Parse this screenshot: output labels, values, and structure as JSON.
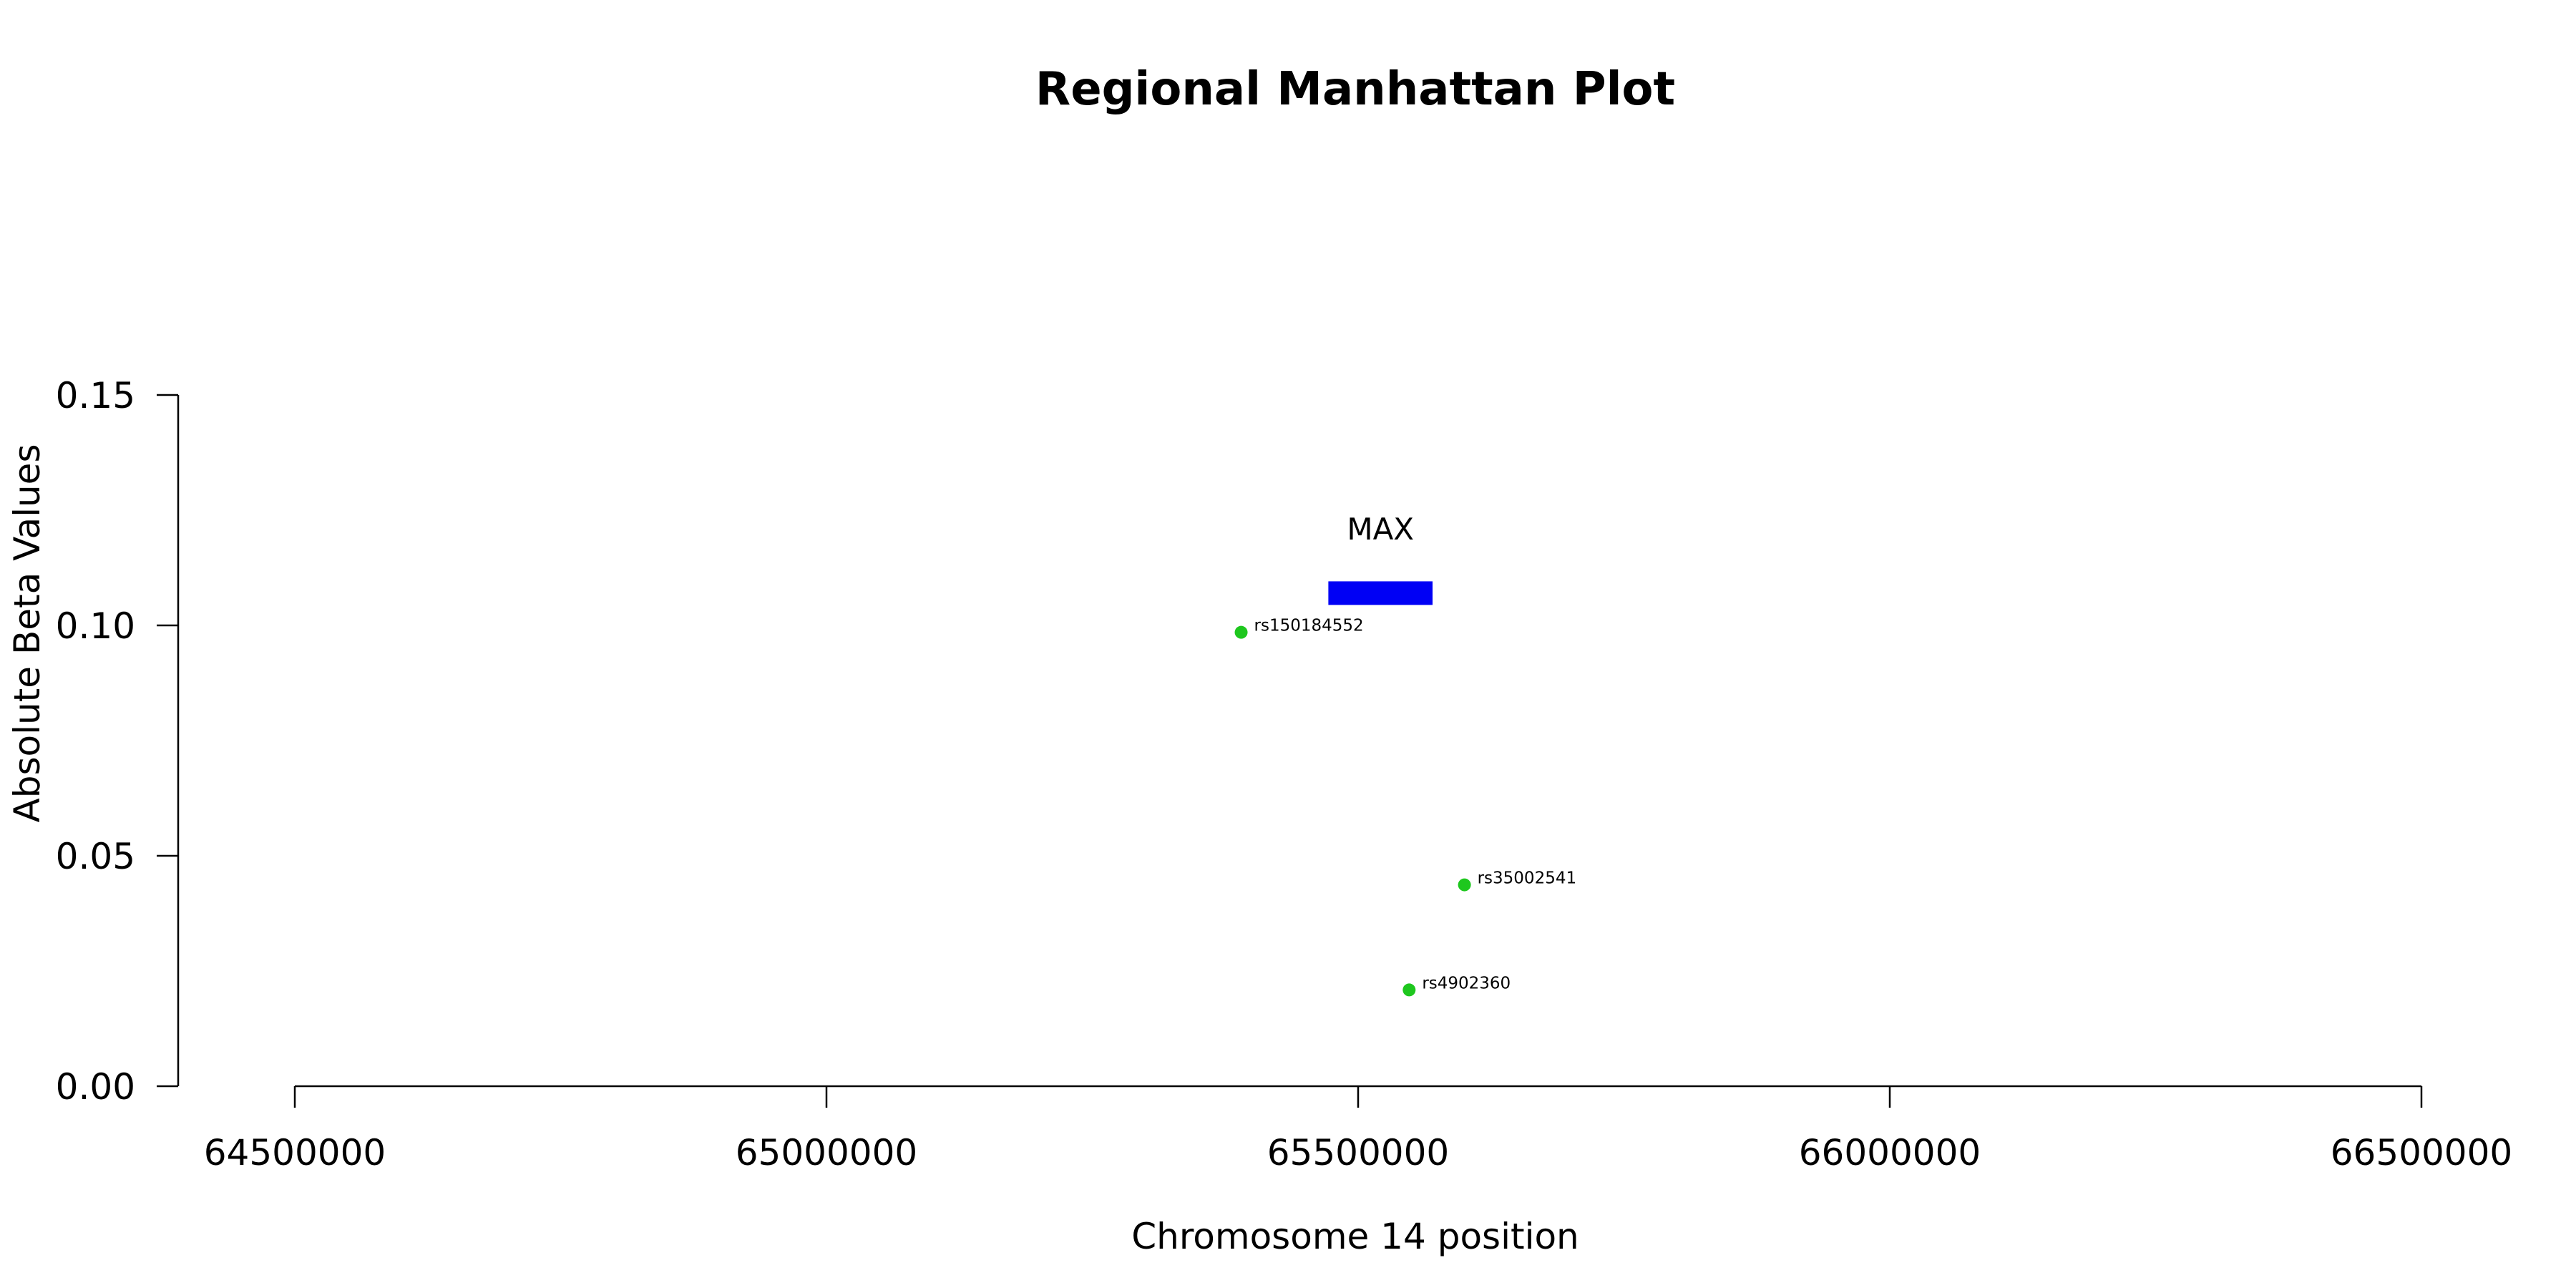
{
  "chart_data": {
    "type": "scatter",
    "title": "Regional Manhattan Plot",
    "xlabel": "Chromosome 14 position",
    "ylabel": "Absolute Beta Values",
    "xlim": [
      64500000,
      66500000
    ],
    "ylim": [
      0,
      0.15
    ],
    "x_ticks": [
      {
        "value": 64500000,
        "label": "64500000"
      },
      {
        "value": 65000000,
        "label": "65000000"
      },
      {
        "value": 65500000,
        "label": "65500000"
      },
      {
        "value": 66000000,
        "label": "66000000"
      },
      {
        "value": 66500000,
        "label": "66500000"
      }
    ],
    "y_ticks": [
      {
        "value": 0.0,
        "label": "0.00"
      },
      {
        "value": 0.05,
        "label": "0.05"
      },
      {
        "value": 0.1,
        "label": "0.10"
      },
      {
        "value": 0.15,
        "label": "0.15"
      }
    ],
    "grid": false,
    "points": [
      {
        "label": "rs150184552",
        "x": 65390000,
        "y": 0.0985
      },
      {
        "label": "rs35002541",
        "x": 65600000,
        "y": 0.0437
      },
      {
        "label": "rs4902360",
        "x": 65548000,
        "y": 0.0209
      }
    ],
    "point_color": "#1ec71e",
    "genes": [
      {
        "name": "MAX",
        "start": 65472000,
        "end": 65570000,
        "y": 0.107,
        "color": "#0000f5"
      }
    ]
  }
}
